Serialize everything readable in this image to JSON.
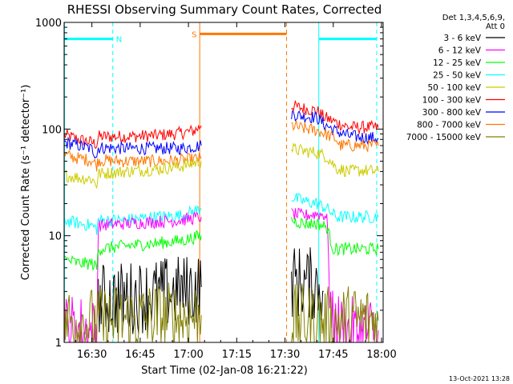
{
  "chart_data": {
    "type": "line",
    "title": "RHESSI Observing Summary Count Rates, Corrected",
    "xlabel": "Start Time (02-Jan-08 16:21:22)",
    "ylabel": "Corrected Count Rate (s⁻¹ detector⁻¹)",
    "yscale": "log",
    "ylim": [
      1,
      1000
    ],
    "xlim_minutes_after_16_00": [
      21.37,
      120.5
    ],
    "xticks": [
      {
        "label": "16:30",
        "minutes": 30
      },
      {
        "label": "16:45",
        "minutes": 45
      },
      {
        "label": "17:00",
        "minutes": 60
      },
      {
        "label": "17:15",
        "minutes": 75
      },
      {
        "label": "17:30",
        "minutes": 90
      },
      {
        "label": "17:45",
        "minutes": 105
      },
      {
        "label": "18:00",
        "minutes": 120
      }
    ],
    "yticks": [
      {
        "label": "1",
        "value": 1
      },
      {
        "label": "10",
        "value": 10
      },
      {
        "label": "100",
        "value": 100
      },
      {
        "label": "1000",
        "value": 1000
      }
    ],
    "legend": {
      "placement": "right",
      "header": [
        "Det 1,3,4,5,6,9,",
        "Att 0"
      ],
      "entries": [
        {
          "label": "3 - 6 keV",
          "color": "#000000"
        },
        {
          "label": "6 - 12 keV",
          "color": "#ff00ff"
        },
        {
          "label": "12 - 25 keV",
          "color": "#00ff00"
        },
        {
          "label": "25 - 50 keV",
          "color": "#00ffff"
        },
        {
          "label": "50 - 100 keV",
          "color": "#cccc00"
        },
        {
          "label": "100 - 300 keV",
          "color": "#ff0000"
        },
        {
          "label": "300 - 800 keV",
          "color": "#0000ff"
        },
        {
          "label": "800 - 7000 keV",
          "color": "#ff7700"
        },
        {
          "label": "7000 - 15000 keV",
          "color": "#808000"
        }
      ]
    },
    "series": [
      {
        "name": "100 - 300 keV",
        "color": "#ff0000",
        "segments": [
          [
            [
              21.4,
              88
            ],
            [
              26,
              80
            ],
            [
              30,
              75
            ],
            [
              31.5,
              72
            ],
            [
              32,
              85
            ],
            [
              40,
              85
            ],
            [
              50,
              87
            ],
            [
              58,
              92
            ],
            [
              62,
              97
            ],
            [
              64,
              108
            ]
          ],
          [
            [
              92,
              165
            ],
            [
              95,
              158
            ],
            [
              100,
              148
            ],
            [
              102,
              130
            ],
            [
              106,
              115
            ],
            [
              110,
              104
            ],
            [
              114,
              104
            ],
            [
              119,
              103
            ]
          ]
        ]
      },
      {
        "name": "300 - 800 keV",
        "color": "#0000ff",
        "segments": [
          [
            [
              21.4,
              75
            ],
            [
              26,
              70
            ],
            [
              30,
              65
            ],
            [
              31.5,
              57
            ],
            [
              32,
              67
            ],
            [
              40,
              66
            ],
            [
              50,
              66
            ],
            [
              58,
              66
            ],
            [
              64,
              70
            ]
          ],
          [
            [
              92,
              140
            ],
            [
              95,
              133
            ],
            [
              100,
              128
            ],
            [
              102,
              112
            ],
            [
              106,
              95
            ],
            [
              110,
              86
            ],
            [
              114,
              84
            ],
            [
              119,
              82
            ]
          ]
        ]
      },
      {
        "name": "800 - 7000 keV",
        "color": "#ff7700",
        "segments": [
          [
            [
              21.4,
              57
            ],
            [
              26,
              53
            ],
            [
              30,
              51
            ],
            [
              31.5,
              46
            ],
            [
              32,
              51
            ],
            [
              40,
              50
            ],
            [
              50,
              50
            ],
            [
              58,
              51
            ],
            [
              64,
              53
            ]
          ],
          [
            [
              92,
              108
            ],
            [
              95,
              102
            ],
            [
              100,
              97
            ],
            [
              102,
              92
            ],
            [
              106,
              80
            ],
            [
              107,
              70
            ],
            [
              110,
              70
            ],
            [
              119,
              70
            ]
          ]
        ]
      },
      {
        "name": "50 - 100 keV",
        "color": "#cccc00",
        "segments": [
          [
            [
              21.4,
              37
            ],
            [
              26,
              35
            ],
            [
              30,
              34
            ],
            [
              31.5,
              30
            ],
            [
              32,
              38
            ],
            [
              40,
              40
            ],
            [
              50,
              42
            ],
            [
              58,
              45
            ],
            [
              64,
              50
            ]
          ],
          [
            [
              92,
              65
            ],
            [
              96,
              62
            ],
            [
              100,
              60
            ],
            [
              103,
              55
            ],
            [
              106,
              43
            ],
            [
              110,
              40
            ],
            [
              114,
              41
            ],
            [
              119,
              40
            ]
          ]
        ]
      },
      {
        "name": "25 - 50 keV",
        "color": "#00ffff",
        "segments": [
          [
            [
              21.4,
              14
            ],
            [
              26,
              13
            ],
            [
              30,
              12.5
            ],
            [
              31.5,
              11.5
            ],
            [
              32,
              14
            ],
            [
              40,
              14
            ],
            [
              50,
              15
            ],
            [
              58,
              15.5
            ],
            [
              64,
              18
            ]
          ],
          [
            [
              92,
              23
            ],
            [
              96,
              21
            ],
            [
              100,
              20
            ],
            [
              103,
              18
            ],
            [
              106,
              15
            ],
            [
              110,
              15
            ],
            [
              119,
              15
            ]
          ]
        ]
      },
      {
        "name": "6 - 12 keV",
        "color": "#ff00ff",
        "segments": [
          [
            [
              21.4,
              1.3
            ],
            [
              26,
              1.3
            ],
            [
              30,
              1.2
            ],
            [
              31.5,
              1.2
            ],
            [
              32,
              12.5
            ],
            [
              40,
              13
            ],
            [
              50,
              13.5
            ],
            [
              58,
              14
            ],
            [
              64,
              15
            ]
          ],
          [
            [
              92,
              16
            ],
            [
              96,
              15.5
            ],
            [
              100,
              16
            ],
            [
              103,
              15.5
            ],
            [
              104.5,
              1.4
            ],
            [
              110,
              1.2
            ],
            [
              119,
              1.3
            ]
          ]
        ]
      },
      {
        "name": "12 - 25 keV",
        "color": "#00ff00",
        "segments": [
          [
            [
              21.4,
              6
            ],
            [
              26,
              5.5
            ],
            [
              30,
              5.5
            ],
            [
              31.5,
              5
            ],
            [
              32,
              7.5
            ],
            [
              40,
              8
            ],
            [
              50,
              8.5
            ],
            [
              58,
              9
            ],
            [
              64,
              10
            ]
          ],
          [
            [
              92,
              14
            ],
            [
              96,
              13
            ],
            [
              100,
              13
            ],
            [
              103,
              12
            ],
            [
              105,
              7.5
            ],
            [
              110,
              7.5
            ],
            [
              119,
              7.5
            ]
          ]
        ]
      },
      {
        "name": "3 - 6 keV",
        "color": "#000000",
        "segments": [
          [
            [
              32,
              2.5
            ],
            [
              40,
              2.6
            ],
            [
              50,
              2.8
            ],
            [
              58,
              3.0
            ],
            [
              64,
              3.3
            ]
          ],
          [
            [
              92,
              3.8
            ],
            [
              96,
              3.6
            ],
            [
              100,
              3.5
            ],
            [
              102,
              3.0
            ]
          ]
        ]
      },
      {
        "name": "7000 - 15000 keV",
        "color": "#808000",
        "segments": [
          [
            [
              21.4,
              1.6
            ],
            [
              26,
              1.6
            ],
            [
              30,
              1.5
            ],
            [
              31.5,
              1.5
            ],
            [
              40,
              1.6
            ],
            [
              50,
              1.7
            ],
            [
              58,
              1.7
            ],
            [
              64,
              1.8
            ]
          ],
          [
            [
              92,
              1.6
            ],
            [
              100,
              1.6
            ],
            [
              104,
              1.5
            ],
            [
              110,
              1.6
            ],
            [
              119,
              1.6
            ]
          ]
        ]
      }
    ],
    "flag_bars": [
      {
        "label": "",
        "color": "#00ffff",
        "start": 21.4,
        "end": 36.5,
        "level": 700
      },
      {
        "label": "N",
        "color": "#00ffff",
        "label_at": 37.5
      },
      {
        "label": "S",
        "color": "#ff7700",
        "start": 63.5,
        "end": 90.5,
        "level": 780,
        "label_at": 61.0
      },
      {
        "label": "",
        "color": "#00ffff",
        "start": 100.5,
        "end": 118.5,
        "level": 700
      }
    ],
    "markers": [
      {
        "color": "#00ffff",
        "style": "solid",
        "minutes": 21.5
      },
      {
        "color": "#00ffff",
        "style": "dashed",
        "minutes": 36.5
      },
      {
        "color": "#ff7700",
        "style": "solid",
        "minutes": 63.5
      },
      {
        "color": "#ff7700",
        "style": "dashed",
        "minutes": 90.5
      },
      {
        "color": "#00ffff",
        "style": "solid",
        "minutes": 100.5
      },
      {
        "color": "#00ffff",
        "style": "dashed",
        "minutes": 118.5
      }
    ],
    "gaps": [
      [
        64.3,
        91.5
      ]
    ],
    "footer_date": "13-Oct-2021 13:28"
  }
}
